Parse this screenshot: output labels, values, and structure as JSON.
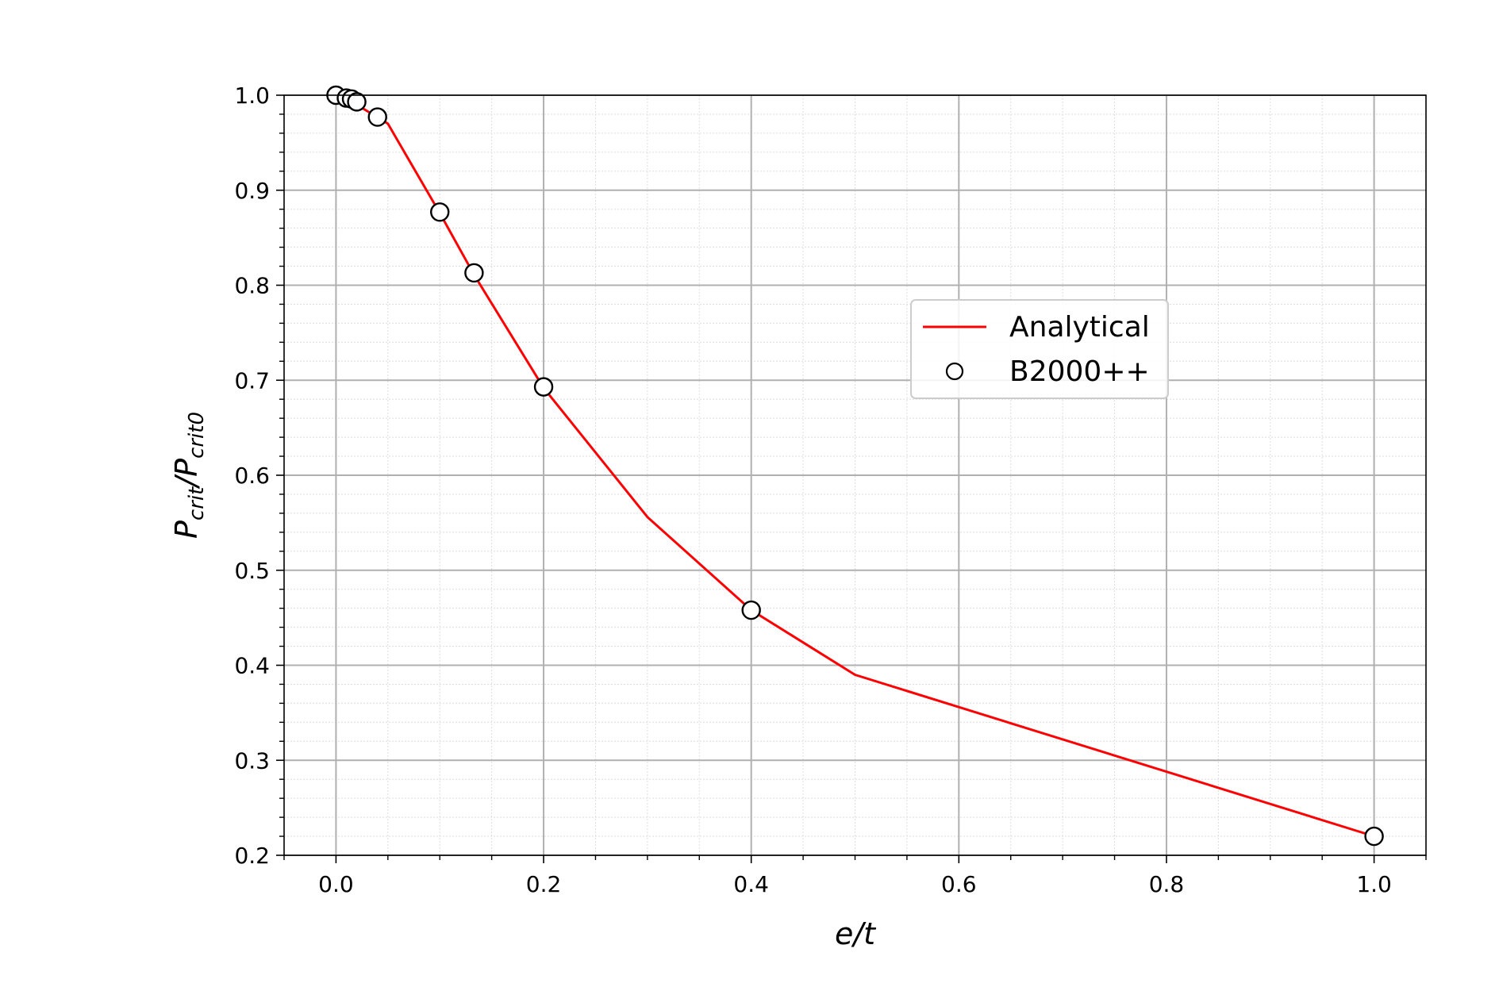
{
  "chart_data": {
    "type": "line",
    "xlabel": "e/t",
    "ylabel": {
      "base": "P",
      "numerator_sub": "crit",
      "separator": "/",
      "denominator_sub": "crit0"
    },
    "xlim": [
      -0.05,
      1.05
    ],
    "ylim": [
      0.2,
      1.0
    ],
    "xticks": [
      0.0,
      0.2,
      0.4,
      0.6,
      0.8,
      1.0
    ],
    "xtick_labels": [
      "0.0",
      "0.2",
      "0.4",
      "0.6",
      "0.8",
      "1.0"
    ],
    "yticks": [
      0.2,
      0.3,
      0.4,
      0.5,
      0.6,
      0.7,
      0.8,
      0.9,
      1.0
    ],
    "ytick_labels": [
      "0.2",
      "0.3",
      "0.4",
      "0.5",
      "0.6",
      "0.7",
      "0.8",
      "0.9",
      "1.0"
    ],
    "x_minor_step": 0.05,
    "y_minor_step": 0.02,
    "grid": true,
    "minor_grid": true,
    "legend_position": "right",
    "series": [
      {
        "name": "Analytical",
        "style": "line",
        "color": "#ff0000",
        "x": [
          0.0,
          0.01,
          0.02,
          0.05,
          0.1,
          0.133,
          0.2,
          0.3,
          0.4,
          0.5,
          1.0
        ],
        "y": [
          1.0,
          0.997,
          0.99,
          0.97,
          0.876,
          0.811,
          0.692,
          0.556,
          0.458,
          0.39,
          0.22
        ]
      },
      {
        "name": "B2000++",
        "style": "markers",
        "marker": "open-circle",
        "color": "#000000",
        "x": [
          0.0,
          0.01,
          0.015,
          0.02,
          0.04,
          0.1,
          0.133,
          0.2,
          0.4,
          1.0
        ],
        "y": [
          1.0,
          0.997,
          0.996,
          0.993,
          0.977,
          0.877,
          0.813,
          0.693,
          0.458,
          0.22
        ]
      }
    ]
  }
}
